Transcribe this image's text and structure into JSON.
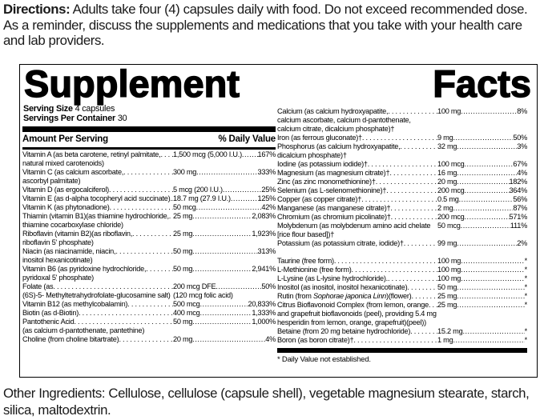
{
  "directions": {
    "label": "Directions:",
    "text": " Adults take four (4) capsules daily with food. Do not exceed recommended dose. As a reminder, discuss the supplements and medications that you take with your health care and lab providers."
  },
  "panel": {
    "title_words": [
      "Supplement",
      "Facts"
    ],
    "serving_size_label": "Serving Size",
    "serving_size_value": " 4 capsules",
    "servings_label": "Servings Per Container",
    "servings_value": " 30",
    "col_header_left": "Amount Per Serving",
    "col_header_right": "% Daily Value",
    "footnote": "* Daily Value not established.",
    "left_rows": [
      {
        "name": "Vitamin A (as beta carotene, retinyl palmitate,",
        "amount": "1,500 mcg (5,000 I.U.)",
        "pct": "167%"
      },
      {
        "cont": "natural mixed carotenoids)"
      },
      {
        "name": "Vitamin C (as calcium ascorbate,",
        "amount": "300 mg",
        "pct": "333%"
      },
      {
        "cont": "ascorbyl palmitate)"
      },
      {
        "name": "Vitamin D (as ergocalciferol)",
        "amount": "5 mcg (200 I.U.)",
        "pct": "25%"
      },
      {
        "name": "Vitamin E (as d-alpha tocopheryl acid succinate).",
        "amount": "18.7 mg (27.9 I.U.)",
        "pct": "125%"
      },
      {
        "name": "Vitamin K (as phytonadione)",
        "amount": "50 mcg",
        "pct": "42%"
      },
      {
        "name": "Thiamin (vitamin B1)(as thiamine hydrochloride,",
        "amount": "25 mg",
        "pct": "2,083%"
      },
      {
        "cont": "thiamine cocarboxylase chloride)"
      },
      {
        "name": "Riboflavin (vitamin B2)(as riboflavin,",
        "amount": "25 mg",
        "pct": "1,923%"
      },
      {
        "cont": "riboflavin 5' phosphate)"
      },
      {
        "name": "Niacin (as niacinamide, niacin,",
        "amount": "50 mg",
        "pct": "313%"
      },
      {
        "cont": "inositol hexanicotinate)"
      },
      {
        "name": "Vitamin B6 (as pyridoxine hydrochloride,",
        "amount": "50 mg",
        "pct": "2,941%"
      },
      {
        "cont": "pyridoxal 5' phosphate)"
      },
      {
        "name": "Folate (as",
        "amount": "200 mcg DFE",
        "pct": "50%"
      },
      {
        "cont": "(6S)-5- Methyltetrahydrofolate-glucosamine salt)",
        "amount2": "(120 mcg folic acid)"
      },
      {
        "name": "Vitamin B12 (as methylcobalamin)",
        "amount": "500 mcg",
        "pct": "20,833%"
      },
      {
        "name": "Biotin (as d-Biotin)",
        "amount": "400 mcg",
        "pct": "1,333%"
      },
      {
        "name": "Pantothenic Acid",
        "amount": "50 mg",
        "pct": "1,000%"
      },
      {
        "cont": "(as calcium d-pantothenate, pantethine)"
      },
      {
        "name": "Choline (from choline bitartrate)",
        "amount": "20 mg",
        "pct": "4%"
      }
    ],
    "right_rows": [
      {
        "name": "Calcium (as calcium hydroxyapatite,",
        "amount": "100 mg",
        "pct": "8%"
      },
      {
        "cont": "calcium ascorbate, calcium d-pantothenate,"
      },
      {
        "cont": "calcium citrate, dicalcium phosphate)†"
      },
      {
        "name": "Iron (as ferrous gluconate)†",
        "amount": "9 mg",
        "pct": "50%"
      },
      {
        "name": "Phosphorus (as calcium hydroxyapatite,",
        "amount": "32 mg",
        "pct": "3%"
      },
      {
        "cont": "dicalcium phosphate)†"
      },
      {
        "name": "Iodine (as potassium iodide)†",
        "amount": "100 mcg",
        "pct": "67%"
      },
      {
        "name": "Magnesium (as magnesium citrate)†",
        "amount": "16 mg",
        "pct": "4%"
      },
      {
        "name": "Zinc (as zinc monomethionine)†",
        "amount": "20 mg",
        "pct": "182%"
      },
      {
        "name": "Selenium (as L-selenomethionine)†",
        "amount": "200 mcg",
        "pct": "364%"
      },
      {
        "name": "Copper (as copper citrate)†",
        "amount": "0.5 mg",
        "pct": "56%"
      },
      {
        "name": "Manganese (as manganese citrate)†",
        "amount": "2 mg",
        "pct": "87%"
      },
      {
        "name": "Chromium (as chromium picolinate)†",
        "amount": "200 mcg",
        "pct": "571%"
      },
      {
        "name": "Molybdenum (as molybdenum amino acid chelate",
        "amount": "50 mcg",
        "pct": "111%",
        "noleader": true
      },
      {
        "cont": "[rice flour based])†"
      },
      {
        "name": "Potassium (as potassium citrate, iodide)†",
        "amount": "99 mg",
        "pct": "2%"
      },
      {
        "spacer": true
      },
      {
        "name": "Taurine (free form)",
        "amount": "100 mg",
        "pct": "*"
      },
      {
        "name": "L-Methionine (free form)",
        "amount": "100 mg",
        "pct": "*"
      },
      {
        "name": "L-Lysine (as L-lysine hydrochloride).",
        "amount": "100 mg",
        "pct": "*"
      },
      {
        "name": "Inositol (as inositol, inositol hexanicotinate)",
        "amount": "50 mg",
        "pct": "*"
      },
      {
        "name": "Rutin (from ",
        "italic": "Sophorae japonica Linn",
        "name2": ")(flower)",
        "amount": "25 mg",
        "pct": "*"
      },
      {
        "name": "Citrus Bioflavonoid Complex (from lemon, orange",
        "amount": "25 mg",
        "pct": "*"
      },
      {
        "cont": "and grapefruit bioflavonoids (peel), providing 5.4 mg"
      },
      {
        "cont": "hesperidin from lemon, orange, grapefruit)(peel))"
      },
      {
        "name": "Betaine (from 20 mg betaine hydrochloride)",
        "amount": "15.2 mg",
        "pct": "*"
      },
      {
        "name": "Boron (as boron citrate)†",
        "amount": "1 mg",
        "pct": "*"
      }
    ]
  },
  "other_ingredients": {
    "label": "Other Ingredients:",
    "text": " Cellulose, cellulose (capsule shell),  vegetable magnesium stearate, starch, silica, maltodextrin."
  }
}
